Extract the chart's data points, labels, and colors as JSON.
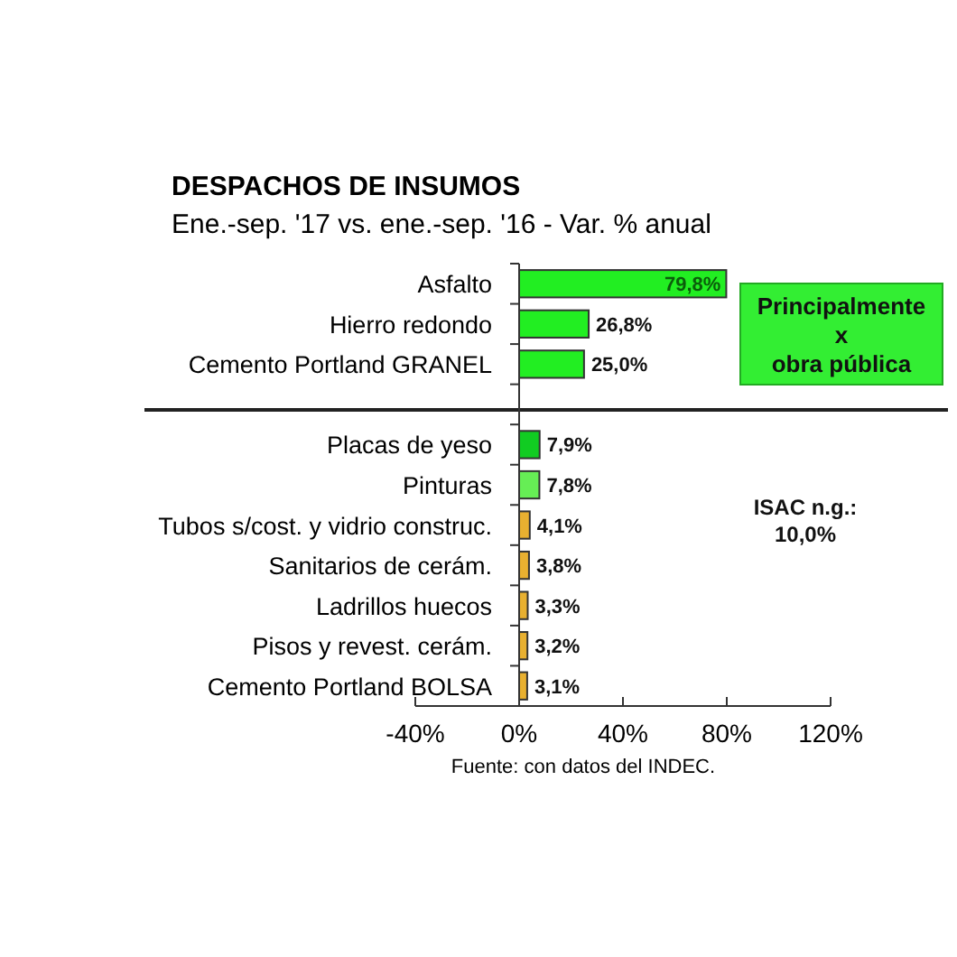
{
  "chart_data": {
    "type": "bar",
    "orientation": "horizontal",
    "title": "DESPACHOS DE INSUMOS",
    "subtitle": "Ene.-sep. '17 vs. ene.-sep. '16 - Var. % anual",
    "categories": [
      "Asfalto",
      "Hierro redondo",
      "Cemento Portland GRANEL",
      null,
      "Placas de yeso",
      "Pinturas",
      "Tubos s/cost. y vidrio construc.",
      "Sanitarios de cerám.",
      "Ladrillos huecos",
      "Pisos y revest. cerám.",
      "Cemento Portland BOLSA"
    ],
    "values": [
      79.8,
      26.8,
      25.0,
      null,
      7.9,
      7.8,
      4.1,
      3.8,
      3.3,
      3.2,
      3.1
    ],
    "colors": [
      "#22ee22",
      "#22ee22",
      "#22ee22",
      null,
      "#11cc22",
      "#66ee55",
      "#e8b030",
      "#e8b030",
      "#e8b030",
      "#e8b030",
      "#e8b030"
    ],
    "value_labels": [
      "79,8%",
      "26,8%",
      "25,0%",
      null,
      "7,9%",
      "7,8%",
      "4,1%",
      "3,8%",
      "3,3%",
      "3,2%",
      "3,1%"
    ],
    "xlim": [
      -40,
      120
    ],
    "xticks": [
      {
        "value": -40,
        "label": "-40%"
      },
      {
        "value": 0,
        "label": "0%"
      },
      {
        "value": 40,
        "label": "40%"
      },
      {
        "value": 80,
        "label": "80%"
      },
      {
        "value": 120,
        "label": "120%"
      }
    ],
    "annotations": [
      "Principalmente\nx\nobra pública",
      "ISAC n.g.:\n10,0%",
      "Fuente: con datos del INDEC."
    ]
  }
}
